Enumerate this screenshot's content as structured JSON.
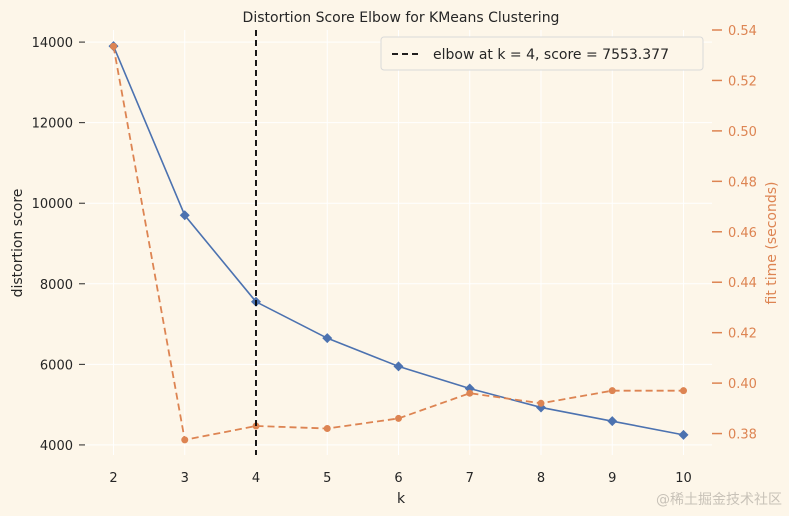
{
  "chart_data": {
    "type": "line",
    "title": "Distortion Score Elbow for KMeans Clustering",
    "xlabel": "k",
    "ylabel": "distortion score",
    "y2label": "fit time (seconds)",
    "x": [
      2,
      3,
      4,
      5,
      6,
      7,
      8,
      9,
      10
    ],
    "xticks": [
      "2",
      "3",
      "4",
      "5",
      "6",
      "7",
      "8",
      "9",
      "10"
    ],
    "xlim": [
      1.6,
      10.4
    ],
    "ylim": [
      3750,
      14300
    ],
    "yticks": [
      "4000",
      "6000",
      "8000",
      "10000",
      "12000",
      "14000"
    ],
    "y2lim": [
      0.3715,
      0.54
    ],
    "y2ticks": [
      "0.38",
      "0.40",
      "0.42",
      "0.44",
      "0.46",
      "0.48",
      "0.50",
      "0.52",
      "0.54"
    ],
    "series": [
      {
        "axis": "left",
        "color": "#4c72b0",
        "marker": "diamond",
        "linestyle": "solid",
        "values": [
          13900,
          9700,
          7553.377,
          6650,
          5950,
          5400,
          4930,
          4590,
          4250
        ]
      },
      {
        "axis": "right",
        "color": "#dd8452",
        "marker": "circle",
        "linestyle": "dashed",
        "values": [
          0.5335,
          0.3775,
          0.383,
          0.382,
          0.386,
          0.396,
          0.392,
          0.397,
          0.397
        ]
      }
    ],
    "elbow": {
      "k": 4,
      "score": 7553.377,
      "legend_text": "elbow at k = 4, score = 7553.377",
      "color": "#000000"
    },
    "legend_position": "top-right",
    "grid": true,
    "background": "#fdf6e9",
    "grid_color": "#ffffff"
  },
  "watermark": "@稀土掘金技术社区"
}
